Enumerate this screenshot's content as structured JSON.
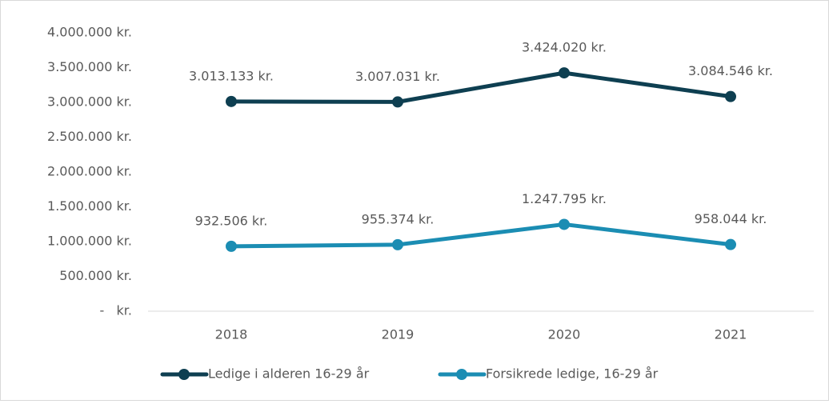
{
  "chart_data": {
    "type": "line",
    "categories": [
      "2018",
      "2019",
      "2020",
      "2021"
    ],
    "series": [
      {
        "name": "Ledige i alderen 16-29 år",
        "color": "#0e3f51",
        "values": [
          3013133,
          3007031,
          3424020,
          3084546
        ],
        "value_labels": [
          "3.013.133 kr.",
          "3.007.031 kr.",
          "3.424.020 kr.",
          "3.084.546 kr."
        ]
      },
      {
        "name": "Forsikrede ledige, 16-29 år",
        "color": "#1b8db3",
        "values": [
          932506,
          955374,
          1247795,
          958044
        ],
        "value_labels": [
          "932.506 kr.",
          "955.374 kr.",
          "1.247.795 kr.",
          "958.044 kr."
        ]
      }
    ],
    "ylim": [
      0,
      4000000
    ],
    "yticks": [
      {
        "value": 0,
        "label": "-   kr."
      },
      {
        "value": 500000,
        "label": "500.000 kr."
      },
      {
        "value": 1000000,
        "label": "1.000.000 kr."
      },
      {
        "value": 1500000,
        "label": "1.500.000 kr."
      },
      {
        "value": 2000000,
        "label": "2.000.000 kr."
      },
      {
        "value": 2500000,
        "label": "2.500.000 kr."
      },
      {
        "value": 3000000,
        "label": "3.000.000 kr."
      },
      {
        "value": 3500000,
        "label": "3.500.000 kr."
      },
      {
        "value": 4000000,
        "label": "4.000.000 kr."
      }
    ],
    "grid": false,
    "legend": "bottom"
  }
}
